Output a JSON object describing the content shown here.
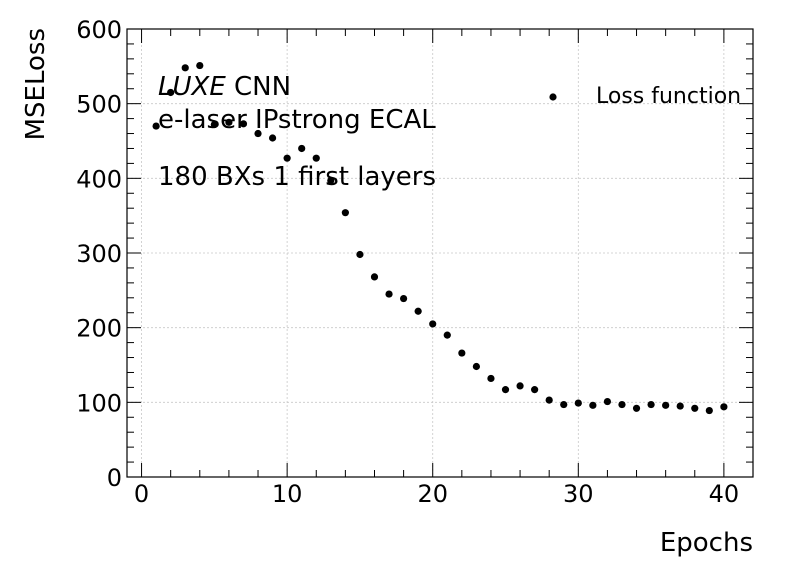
{
  "chart_data": {
    "type": "scatter",
    "title": "",
    "xlabel": "Epochs",
    "ylabel": "MSELoss",
    "xlim": [
      -1,
      42
    ],
    "ylim": [
      0,
      600
    ],
    "xticks": [
      0,
      10,
      20,
      30,
      40
    ],
    "yticks": [
      0,
      100,
      200,
      300,
      400,
      500,
      600
    ],
    "x_tick_labels": [
      "0",
      "10",
      "20",
      "30",
      "40"
    ],
    "y_tick_labels": [
      "0",
      "100",
      "200",
      "300",
      "400",
      "500",
      "600"
    ],
    "grid": true,
    "legend_position": "top-right",
    "annotations": {
      "line1_italic": "LUXE",
      "line1_rest": " CNN",
      "line2": "e-laser IPstrong ECAL",
      "line3": "180 BXs 1 first layers"
    },
    "series": [
      {
        "name": "Loss function",
        "color": "#000000",
        "x": [
          1,
          2,
          3,
          4,
          5,
          6,
          7,
          8,
          9,
          10,
          11,
          12,
          13,
          14,
          15,
          16,
          17,
          18,
          19,
          20,
          21,
          22,
          23,
          24,
          25,
          26,
          27,
          28,
          29,
          30,
          31,
          32,
          33,
          34,
          35,
          36,
          37,
          38,
          39,
          40
        ],
        "y": [
          470,
          515,
          548,
          551,
          472,
          475,
          473,
          460,
          454,
          427,
          440,
          427,
          397,
          354,
          298,
          268,
          245,
          239,
          222,
          205,
          190,
          166,
          148,
          132,
          117,
          122,
          117,
          103,
          97,
          99,
          96,
          101,
          97,
          92,
          97,
          96,
          95,
          92,
          89,
          94
        ]
      }
    ]
  }
}
